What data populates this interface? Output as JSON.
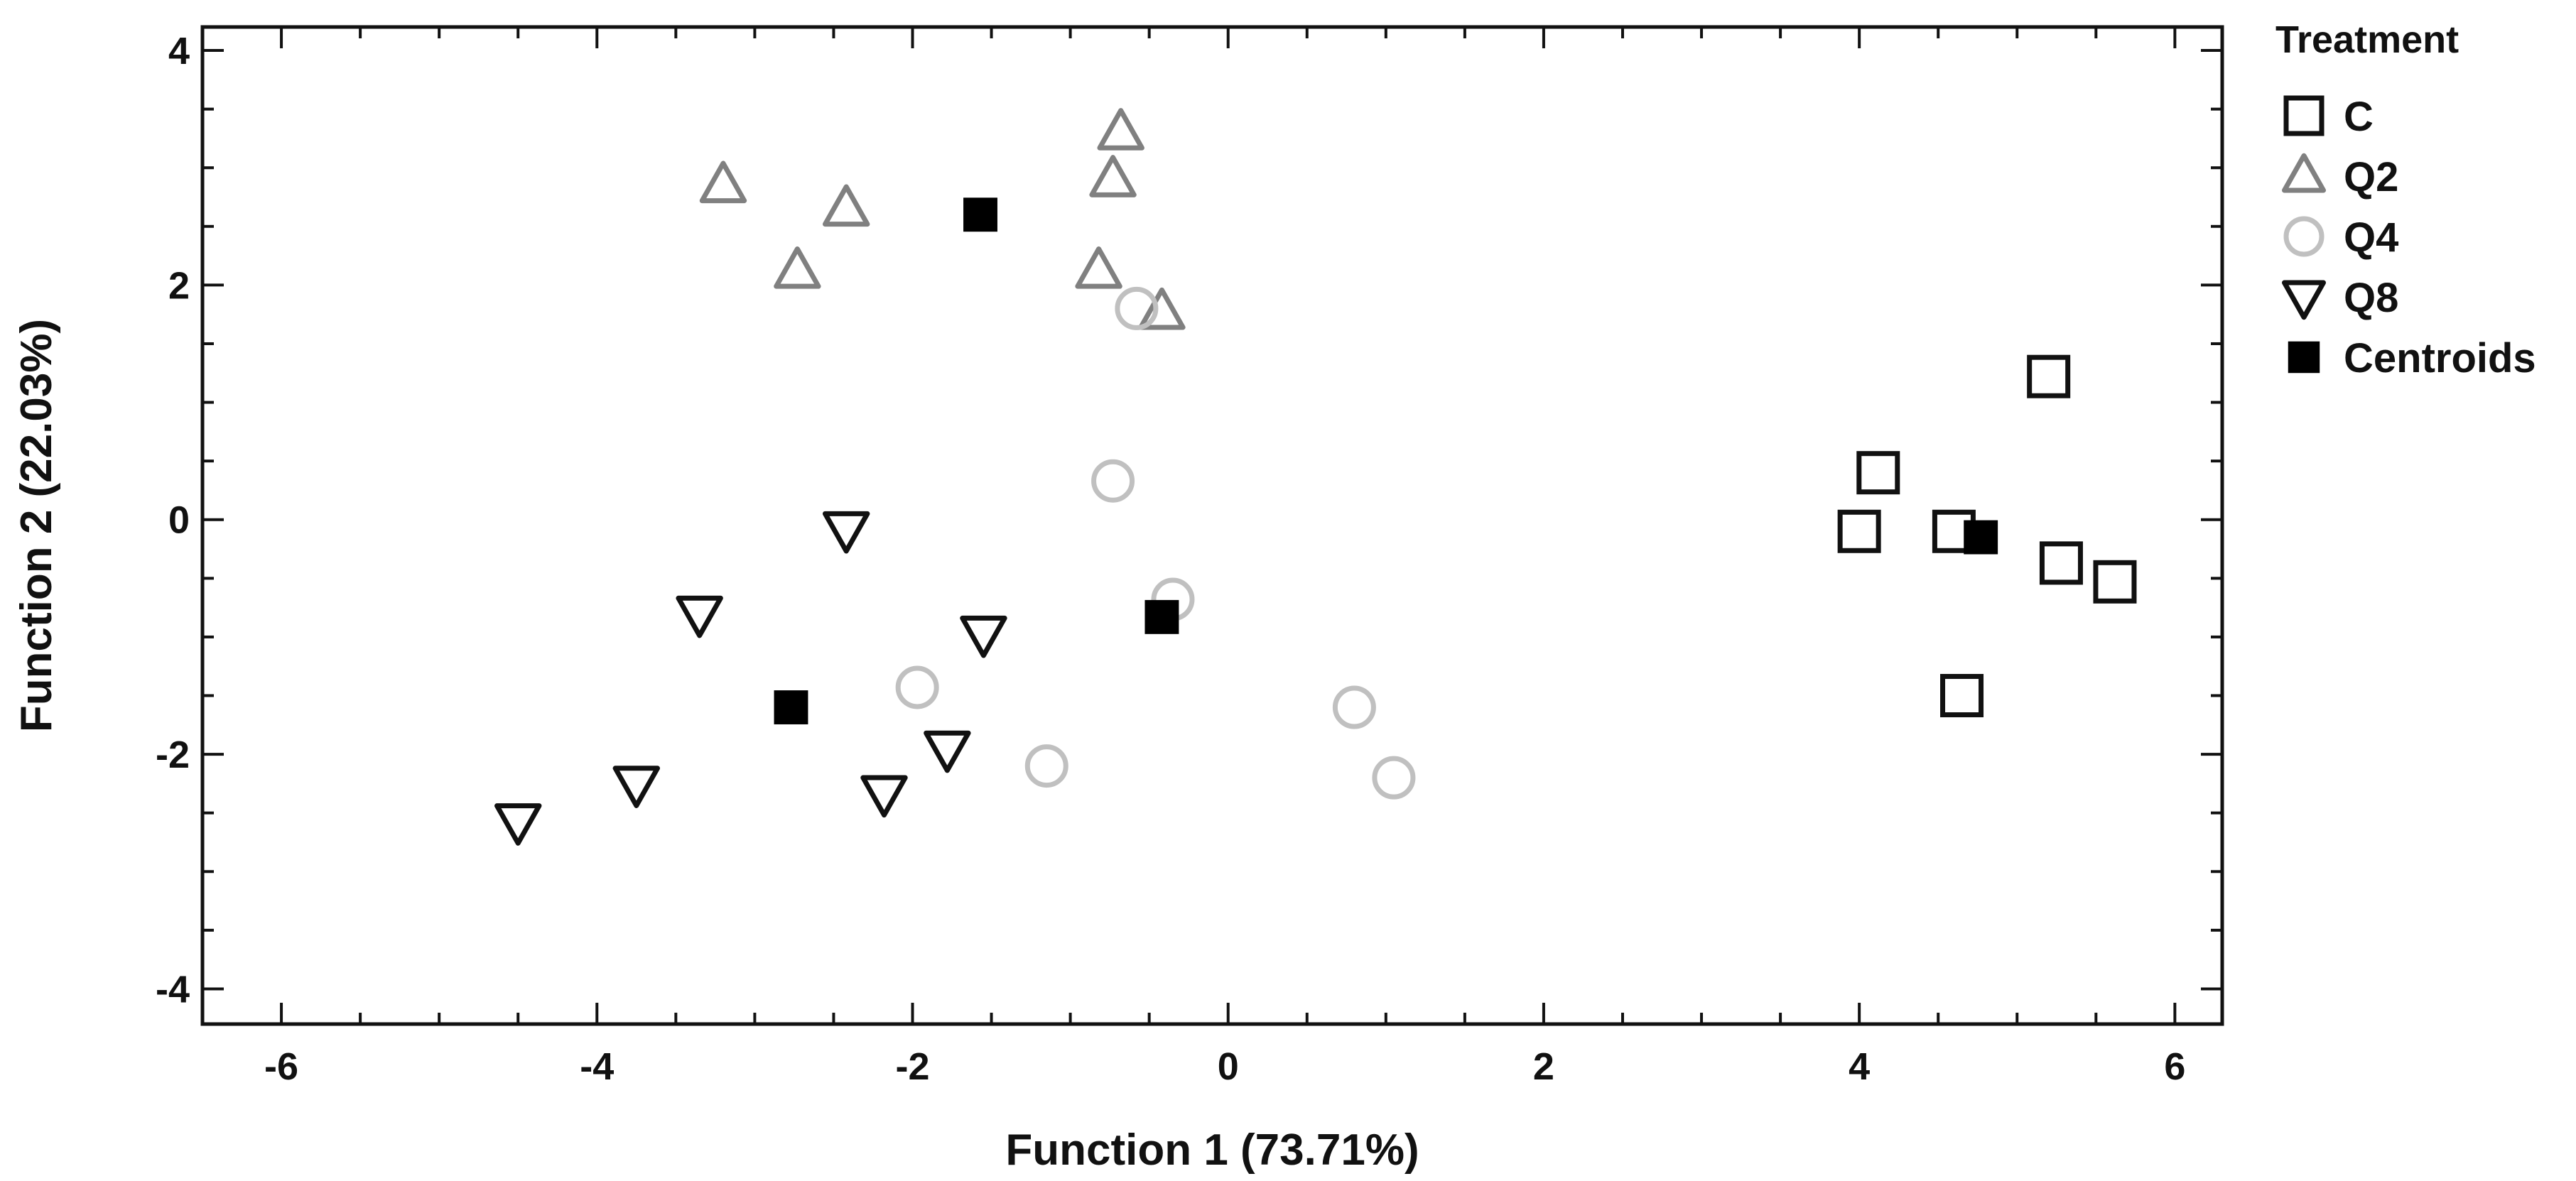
{
  "chart_data": {
    "type": "scatter",
    "xlabel": "Function 1 (73.71%)",
    "ylabel": "Function 2 (22.03%)",
    "xlim": [
      -6.5,
      6.3
    ],
    "ylim": [
      -4.3,
      4.2
    ],
    "x_ticks": [
      -6,
      -4,
      -2,
      0,
      2,
      4,
      6
    ],
    "y_ticks": [
      -4,
      -2,
      0,
      2,
      4
    ],
    "grid": false,
    "legend": {
      "title": "Treatment",
      "placement": "right-outside-top",
      "entries": [
        "C",
        "Q2",
        "Q4",
        "Q8",
        "Centroids"
      ]
    },
    "series": [
      {
        "name": "C",
        "marker": "square-open",
        "color": "#111111",
        "points": [
          [
            4.0,
            -0.1
          ],
          [
            4.12,
            0.4
          ],
          [
            4.6,
            -0.1
          ],
          [
            4.65,
            -1.5
          ],
          [
            5.2,
            1.22
          ],
          [
            5.28,
            -0.37
          ],
          [
            5.62,
            -0.53
          ]
        ]
      },
      {
        "name": "Q2",
        "marker": "triangle-up-open",
        "color": "#808080",
        "points": [
          [
            -3.2,
            2.85
          ],
          [
            -2.73,
            2.12
          ],
          [
            -2.42,
            2.65
          ],
          [
            -0.73,
            2.9
          ],
          [
            -0.68,
            3.3
          ],
          [
            -0.82,
            2.12
          ],
          [
            -0.42,
            1.77
          ]
        ]
      },
      {
        "name": "Q4",
        "marker": "circle-open",
        "color": "#c0c0c0",
        "points": [
          [
            -0.58,
            1.8
          ],
          [
            -0.73,
            0.33
          ],
          [
            -0.35,
            -0.68
          ],
          [
            -1.97,
            -1.43
          ],
          [
            -1.15,
            -2.1
          ],
          [
            0.8,
            -1.6
          ],
          [
            1.05,
            -2.2
          ]
        ]
      },
      {
        "name": "Q8",
        "marker": "triangle-down-open",
        "color": "#111111",
        "points": [
          [
            -2.42,
            -0.08
          ],
          [
            -3.35,
            -0.8
          ],
          [
            -1.55,
            -0.97
          ],
          [
            -1.78,
            -1.95
          ],
          [
            -2.18,
            -2.33
          ],
          [
            -3.75,
            -2.25
          ],
          [
            -4.5,
            -2.57
          ]
        ]
      },
      {
        "name": "Centroids",
        "marker": "square-filled",
        "color": "#000000",
        "points": [
          [
            -1.57,
            2.6
          ],
          [
            -0.42,
            -0.83
          ],
          [
            -2.77,
            -1.6
          ],
          [
            4.77,
            -0.15
          ]
        ]
      }
    ]
  }
}
